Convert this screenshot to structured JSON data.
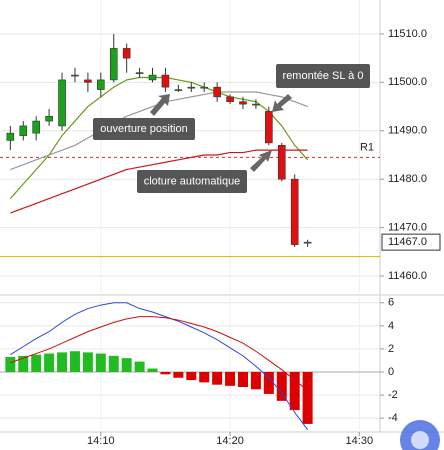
{
  "chart_data": [
    {
      "type": "candlestick",
      "x": [
        843,
        844,
        845,
        846,
        847,
        848,
        849,
        850,
        851,
        852,
        853,
        854,
        855,
        856,
        857,
        858,
        859,
        860,
        861,
        862,
        863,
        864,
        865,
        866
      ],
      "open": [
        11488,
        11489,
        11489.5,
        11492,
        11491,
        11501.5,
        11500.5,
        11498.5,
        11500.5,
        11507,
        11502,
        11500.5,
        11501.5,
        11498.5,
        11499,
        11499,
        11499,
        11497,
        11496,
        11495.5,
        11494,
        11487,
        11480,
        11467
      ],
      "high": [
        11491,
        11492,
        11493,
        11494.5,
        11502,
        11503,
        11502,
        11502,
        11510,
        11508,
        11503,
        11503,
        11503,
        11499.5,
        11500,
        11500,
        11500,
        11497.5,
        11497,
        11496.5,
        11495,
        11487.5,
        11481,
        11467.5
      ],
      "low": [
        11486,
        11488,
        11488,
        11491,
        11490,
        11500,
        11498,
        11497,
        11500,
        11502,
        11501,
        11500,
        11498,
        11498,
        11498,
        11498,
        11496,
        11495.5,
        11494.5,
        11494.5,
        11487,
        11479.5,
        11466,
        11466
      ],
      "close": [
        11489.5,
        11491,
        11492,
        11493,
        11500.5,
        11501.5,
        11500,
        11500.5,
        11507,
        11505,
        11502,
        11501.5,
        11499,
        11498.5,
        11499,
        11499,
        11497,
        11496,
        11495.5,
        11495.5,
        11487.5,
        11480,
        11466.5,
        11467
      ],
      "up_color": "#1aa31a",
      "down_color": "#e01010",
      "lines": [
        {
          "color": "#6a9a1a",
          "values": [
            11476,
            11479,
            11482,
            11485,
            11489,
            11492,
            11495,
            11497,
            11499,
            11500.5,
            11501,
            11501,
            11501,
            11500.5,
            11500,
            11499,
            11498,
            11497,
            11496.5,
            11496,
            11494,
            11491,
            11487,
            11484
          ]
        },
        {
          "color": "#999999",
          "values": [
            11482,
            11483,
            11484,
            11485,
            11486,
            11487,
            11488.5,
            11490,
            11491.5,
            11493,
            11494,
            11495,
            11496,
            11496.5,
            11497,
            11497.5,
            11498,
            11498,
            11498,
            11498,
            11497.5,
            11497,
            11496,
            11495
          ]
        },
        {
          "color": "#c41a1a",
          "values": [
            11473,
            11474,
            11475,
            11476,
            11477,
            11478,
            11479,
            11480,
            11481,
            11482,
            11482.5,
            11483,
            11483.5,
            11484,
            11484.5,
            11485,
            11485,
            11485.5,
            11485.5,
            11486,
            11486,
            11486,
            11486,
            11486
          ]
        }
      ],
      "levels": [
        {
          "value": 11484.5,
          "label": "R1",
          "color": "#d03030"
        },
        {
          "value": 11464,
          "color": "#d4b800"
        }
      ],
      "last_price": {
        "value": 11467,
        "label": "11467.0"
      },
      "annotations": [
        "ouverture position",
        "remontée SL à 0",
        "cloture automatique"
      ],
      "xlim": [
        842.2,
        871.6
      ],
      "ylim": [
        11456.5,
        11517
      ],
      "yticks": [
        {
          "value": 11460,
          "label": "11460.0"
        },
        {
          "value": 11470,
          "label": "11470.0"
        },
        {
          "value": 11480,
          "label": "11480.0"
        },
        {
          "value": 11490,
          "label": "11490.0"
        },
        {
          "value": 11500,
          "label": "11500.0"
        },
        {
          "value": 11510,
          "label": "11510.0"
        }
      ],
      "grid": true
    },
    {
      "type": "macd",
      "x": [
        843,
        844,
        845,
        846,
        847,
        848,
        849,
        850,
        851,
        852,
        853,
        854,
        855,
        856,
        857,
        858,
        859,
        860,
        861,
        862,
        863,
        864,
        865,
        866
      ],
      "histogram": [
        1.3,
        1.4,
        1.5,
        1.6,
        1.7,
        1.8,
        1.7,
        1.6,
        1.4,
        1.2,
        0.9,
        0.3,
        -0.2,
        -0.5,
        -0.7,
        -0.9,
        -1.1,
        -1.2,
        -1.3,
        -1.5,
        -1.9,
        -2.5,
        -3.3,
        -4.5
      ],
      "up_color": "#22bb22",
      "down_color": "#dd0000",
      "series": [
        {
          "color": "#3344dd",
          "values": [
            1.5,
            2.2,
            2.9,
            3.5,
            4.3,
            5.0,
            5.5,
            5.8,
            6.0,
            6.0,
            5.5,
            5.2,
            4.8,
            4.4,
            3.9,
            3.4,
            2.8,
            2.1,
            1.4,
            0.5,
            -0.5,
            -1.8,
            -3.5,
            -5.0
          ]
        },
        {
          "color": "#cc1111",
          "values": [
            0.8,
            1.2,
            1.6,
            2.0,
            2.5,
            3.0,
            3.5,
            3.9,
            4.3,
            4.6,
            4.8,
            4.8,
            4.7,
            4.5,
            4.2,
            3.9,
            3.5,
            3.0,
            2.5,
            1.8,
            1.0,
            0.2,
            -0.7,
            -1.6
          ]
        }
      ],
      "xlim": [
        842.2,
        871.6
      ],
      "ylim": [
        -5.2,
        6.5
      ],
      "yticks": [
        -4,
        -2,
        0,
        2,
        4,
        6
      ],
      "xticks": [
        {
          "value": 850,
          "label": "14:10"
        },
        {
          "value": 860,
          "label": "14:20"
        },
        {
          "value": 870,
          "label": "14:30"
        }
      ],
      "grid": true
    }
  ]
}
